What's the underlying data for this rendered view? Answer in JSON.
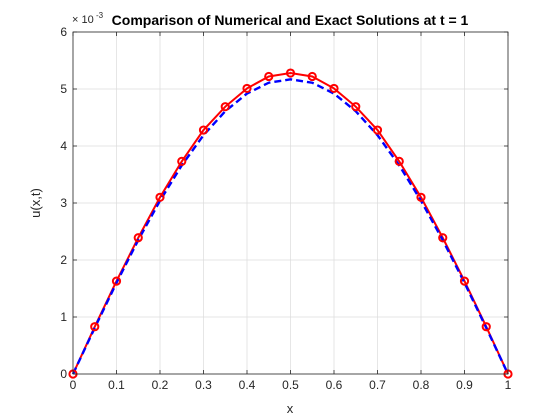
{
  "chart_data": {
    "type": "line",
    "title": "Comparison of Numerical and Exact Solutions at t = 1",
    "xlabel": "x",
    "ylabel": "u(x,t)",
    "y_exponent_label": "× 10",
    "y_exponent_value": "-3",
    "xlim": [
      0,
      1
    ],
    "ylim": [
      0,
      6
    ],
    "grid": true,
    "x_ticks": [
      0,
      0.1,
      0.2,
      0.3,
      0.4,
      0.5,
      0.6,
      0.7,
      0.8,
      0.9,
      1
    ],
    "x_tick_labels": [
      "0",
      "0.1",
      "0.2",
      "0.3",
      "0.4",
      "0.5",
      "0.6",
      "0.7",
      "0.8",
      "0.9",
      "1"
    ],
    "y_ticks": [
      0,
      1,
      2,
      3,
      4,
      5,
      6
    ],
    "y_tick_labels": [
      "0",
      "1",
      "2",
      "3",
      "4",
      "5",
      "6"
    ],
    "x": [
      0,
      0.05,
      0.1,
      0.15,
      0.2,
      0.25,
      0.3,
      0.35,
      0.4,
      0.45,
      0.5,
      0.55,
      0.6,
      0.65,
      0.7,
      0.75,
      0.8,
      0.85,
      0.9,
      0.95,
      1
    ],
    "series": [
      {
        "style": "solid-line-circle-markers",
        "color": "#ff0000",
        "values": [
          0,
          0.83,
          1.63,
          2.39,
          3.1,
          3.73,
          4.28,
          4.69,
          5.01,
          5.22,
          5.28,
          5.22,
          5.01,
          4.69,
          4.28,
          3.73,
          3.1,
          2.39,
          1.63,
          0.83,
          0
        ]
      },
      {
        "style": "dashed-line",
        "color": "#0000ff",
        "values": [
          0,
          0.81,
          1.6,
          2.35,
          3.04,
          3.66,
          4.19,
          4.61,
          4.92,
          5.11,
          5.17,
          5.11,
          4.92,
          4.61,
          4.19,
          3.66,
          3.04,
          2.35,
          1.6,
          0.81,
          0
        ]
      }
    ]
  }
}
